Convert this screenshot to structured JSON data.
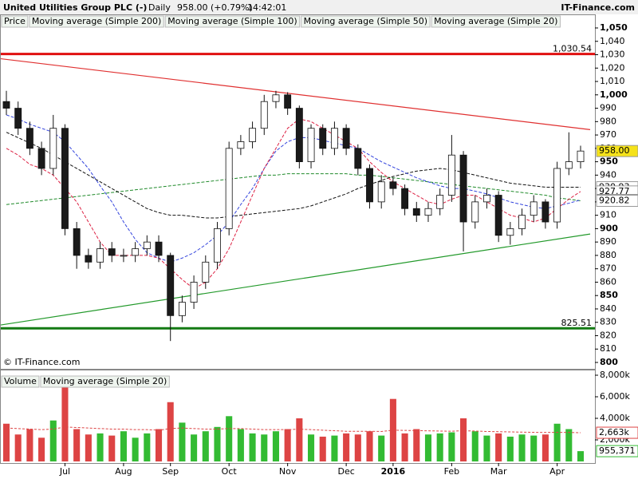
{
  "header": {
    "title": "United Utilities Group PLC (-)",
    "period": "Daily",
    "quote": "958.00 (+0.79%)",
    "time": "14:42:01",
    "site": "IT-Finance.com",
    "copyright": "© IT-Finance.com"
  },
  "chart_data": [
    {
      "type": "candlestick",
      "name": "Price",
      "up_color": "#ffffff",
      "down_color": "#1a1a1a",
      "open": [
        995,
        990,
        975,
        960,
        945,
        975,
        900,
        880,
        875,
        885,
        880,
        880,
        885,
        890,
        880,
        835,
        845,
        860,
        875,
        900,
        960,
        965,
        975,
        995,
        1000,
        990,
        950,
        975,
        960,
        975,
        960,
        945,
        920,
        935,
        930,
        915,
        910,
        915,
        925,
        955,
        905,
        920,
        925,
        895,
        900,
        910,
        920,
        905,
        945,
        950
      ],
      "high": [
        1003,
        995,
        980,
        965,
        985,
        978,
        905,
        885,
        890,
        890,
        885,
        890,
        895,
        895,
        882,
        850,
        865,
        880,
        905,
        965,
        970,
        980,
        1000,
        1003,
        1002,
        992,
        978,
        978,
        980,
        978,
        963,
        948,
        940,
        938,
        933,
        920,
        920,
        930,
        970,
        958,
        925,
        930,
        928,
        905,
        915,
        925,
        922,
        950,
        972,
        962
      ],
      "low": [
        985,
        970,
        955,
        940,
        940,
        895,
        870,
        870,
        870,
        875,
        875,
        875,
        880,
        875,
        816,
        830,
        840,
        855,
        870,
        895,
        955,
        960,
        970,
        990,
        985,
        945,
        945,
        955,
        955,
        955,
        940,
        915,
        915,
        925,
        910,
        905,
        905,
        910,
        920,
        883,
        900,
        915,
        890,
        888,
        895,
        905,
        900,
        900,
        940,
        945
      ],
      "close": [
        990,
        975,
        960,
        945,
        975,
        900,
        880,
        875,
        885,
        880,
        880,
        885,
        890,
        880,
        835,
        845,
        860,
        875,
        900,
        960,
        965,
        975,
        995,
        1000,
        990,
        950,
        975,
        960,
        975,
        960,
        945,
        920,
        935,
        930,
        915,
        910,
        915,
        925,
        955,
        905,
        920,
        925,
        895,
        900,
        910,
        920,
        905,
        945,
        950,
        958
      ],
      "series": [
        {
          "name": "Moving average (Simple 200)",
          "color": "#1f8a2a",
          "values": [
            918,
            919,
            920,
            921,
            922,
            923,
            924,
            925,
            926,
            927,
            928,
            929,
            930,
            931,
            932,
            933,
            934,
            935,
            936,
            937,
            938,
            939,
            940,
            940,
            941,
            941,
            941,
            941,
            941,
            941,
            940,
            940,
            939,
            938,
            937,
            936,
            935,
            934,
            933,
            932,
            931,
            930,
            929,
            928,
            927,
            926,
            925,
            923,
            922,
            920.82
          ]
        },
        {
          "name": "Moving average (Simple 100)",
          "color": "#111111",
          "values": [
            972,
            968,
            964,
            960,
            955,
            950,
            945,
            940,
            935,
            930,
            925,
            920,
            915,
            912,
            910,
            910,
            909,
            908,
            908,
            909,
            910,
            911,
            912,
            913,
            914,
            915,
            917,
            920,
            923,
            926,
            930,
            933,
            936,
            939,
            941,
            943,
            944,
            945,
            944,
            942,
            940,
            938,
            936,
            934,
            933,
            932,
            931,
            931,
            931,
            930.93
          ]
        },
        {
          "name": "Moving average (Simple 50)",
          "color": "#3344dd",
          "values": [
            985,
            982,
            978,
            975,
            972,
            965,
            955,
            945,
            932,
            920,
            905,
            892,
            882,
            878,
            875,
            878,
            882,
            888,
            895,
            905,
            918,
            930,
            945,
            958,
            965,
            968,
            968,
            966,
            964,
            962,
            960,
            955,
            950,
            946,
            942,
            938,
            935,
            932,
            930,
            930,
            928,
            926,
            923,
            920,
            918,
            916,
            915,
            917,
            919,
            921.41
          ]
        },
        {
          "name": "Moving average (Simple 20)",
          "color": "#dd2244",
          "values": [
            960,
            955,
            948,
            945,
            940,
            930,
            920,
            905,
            890,
            880,
            880,
            880,
            880,
            878,
            870,
            862,
            855,
            860,
            870,
            885,
            905,
            925,
            945,
            960,
            975,
            982,
            980,
            975,
            970,
            965,
            960,
            950,
            942,
            935,
            930,
            925,
            920,
            918,
            922,
            925,
            925,
            920,
            915,
            910,
            908,
            905,
            908,
            915,
            922,
            927.77
          ]
        }
      ],
      "last_labels": [
        {
          "value": 958,
          "label": "958.00",
          "color": "#f5e21a"
        },
        {
          "value": 930.93,
          "label": "930.93",
          "color": "#ffffff"
        },
        {
          "value": 927.77,
          "label": "927.77",
          "color": "#ffffff"
        },
        {
          "value": 921.41,
          "label": "921.41",
          "color": "#ffffff"
        },
        {
          "value": 920.82,
          "label": "920.82",
          "color": "#ffffff"
        }
      ],
      "hlines": [
        {
          "value": 1030.54,
          "label": "1,030.54",
          "color": "#e01010"
        },
        {
          "value": 825.51,
          "label": "825.51",
          "color": "#137a13"
        }
      ],
      "trendlines": [
        {
          "color": "#e03030",
          "values": [
            1027,
            974
          ]
        },
        {
          "color": "#22992a",
          "values": [
            828,
            896
          ]
        }
      ],
      "ylim": [
        800,
        1050
      ],
      "yticks": [
        800,
        810,
        820,
        830,
        840,
        850,
        860,
        870,
        880,
        890,
        900,
        910,
        920,
        930,
        940,
        950,
        960,
        970,
        980,
        990,
        {
          "value": 1000,
          "label": "1,000"
        },
        {
          "value": 1010,
          "label": "1,010"
        },
        {
          "value": 1020,
          "label": "1,020"
        },
        {
          "value": 1030,
          "label": "1,030"
        },
        {
          "value": 1040,
          "label": "1,040"
        },
        {
          "value": 1050,
          "label": "1,050"
        }
      ]
    },
    {
      "type": "bar",
      "name": "Volume",
      "up_color": "#33bb33",
      "down_color": "#dd4444",
      "categories": [
        null,
        null,
        null,
        null,
        null,
        "Jul",
        null,
        null,
        null,
        null,
        "Aug",
        null,
        null,
        null,
        "Sep",
        null,
        null,
        null,
        null,
        "Oct",
        null,
        null,
        null,
        null,
        "Nov",
        null,
        null,
        null,
        null,
        "Dec",
        null,
        null,
        null,
        "2016",
        null,
        null,
        null,
        null,
        "Feb",
        null,
        null,
        null,
        "Mar",
        null,
        null,
        null,
        null,
        "Apr",
        null,
        null
      ],
      "values": [
        3500000,
        2500000,
        3000000,
        2200000,
        3800000,
        7200000,
        3000000,
        2500000,
        2600000,
        2400000,
        2800000,
        2200000,
        2600000,
        3000000,
        5500000,
        3600000,
        2500000,
        2800000,
        3200000,
        4200000,
        3000000,
        2600000,
        2500000,
        2800000,
        3000000,
        4000000,
        2500000,
        2300000,
        2400000,
        2600000,
        2500000,
        2800000,
        2400000,
        5800000,
        2600000,
        3000000,
        2500000,
        2600000,
        2700000,
        4000000,
        2800000,
        2400000,
        2600000,
        2300000,
        2500000,
        2400000,
        2500000,
        3500000,
        3000000,
        955371
      ],
      "series": [
        {
          "name": "Moving average (Simple 20)",
          "color": "#dd4444",
          "values": [
            3100000,
            3050000,
            3000000,
            2950000,
            3000000,
            3200000,
            3150000,
            3100000,
            3050000,
            3000000,
            3000000,
            2950000,
            2950000,
            2900000,
            3050000,
            3100000,
            3050000,
            3000000,
            3000000,
            3050000,
            3050000,
            3000000,
            2950000,
            2950000,
            2950000,
            3000000,
            2950000,
            2900000,
            2850000,
            2800000,
            2800000,
            2800000,
            2780000,
            2900000,
            2880000,
            2860000,
            2840000,
            2820000,
            2800000,
            2850000,
            2820000,
            2780000,
            2760000,
            2740000,
            2720000,
            2700000,
            2690000,
            2700000,
            2690000,
            2663000
          ]
        }
      ],
      "value_labels": [
        {
          "value": 2663000,
          "label": "2,663k",
          "color": "#dd4444"
        },
        {
          "value": 955371,
          "label": "955,371",
          "color": "#33bb33"
        }
      ],
      "ylim": [
        0,
        8000000
      ],
      "yticks": [
        {
          "value": 2000000,
          "label": "2,000k"
        },
        {
          "value": 4000000,
          "label": "4,000k"
        },
        {
          "value": 6000000,
          "label": "6,000k"
        },
        {
          "value": 8000000,
          "label": "8,000k"
        }
      ]
    }
  ]
}
